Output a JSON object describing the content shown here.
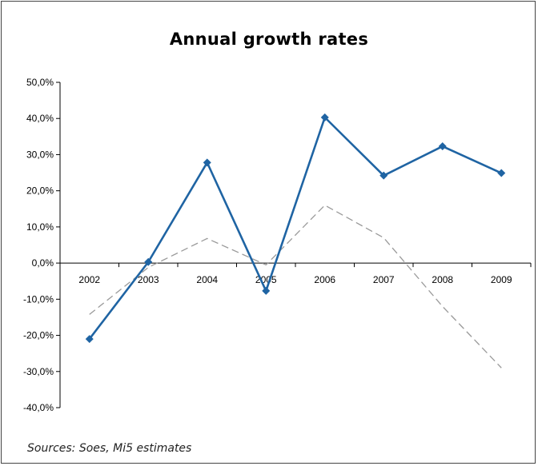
{
  "chart_data": {
    "type": "line",
    "title": "Annual growth rates",
    "source": "Sources: Soes, Mi5 estimates",
    "x": [
      "2002",
      "2003",
      "2004",
      "2005",
      "2006",
      "2007",
      "2008",
      "2009"
    ],
    "series": [
      {
        "name": "",
        "style": "solid-with-diamond-markers",
        "color": "#1f64a3",
        "values": [
          -21.0,
          0.3,
          27.8,
          -7.7,
          40.3,
          24.2,
          32.3,
          24.9
        ]
      },
      {
        "name": "",
        "style": "dashed",
        "color": "#9a9a9a",
        "values": [
          -14.2,
          -1.2,
          6.8,
          -0.5,
          16.0,
          7.0,
          -12.0,
          -29.0
        ]
      }
    ],
    "ylim": [
      -40,
      50
    ],
    "yticks": [
      "-40,0%",
      "-30,0%",
      "-20,0%",
      "-10,0%",
      "0,0%",
      "10,0%",
      "20,0%",
      "30,0%",
      "40,0%",
      "50,0%"
    ],
    "ytick_values": [
      -40,
      -30,
      -20,
      -10,
      0,
      10,
      20,
      30,
      40,
      50
    ],
    "grid": false,
    "legend": "none"
  }
}
